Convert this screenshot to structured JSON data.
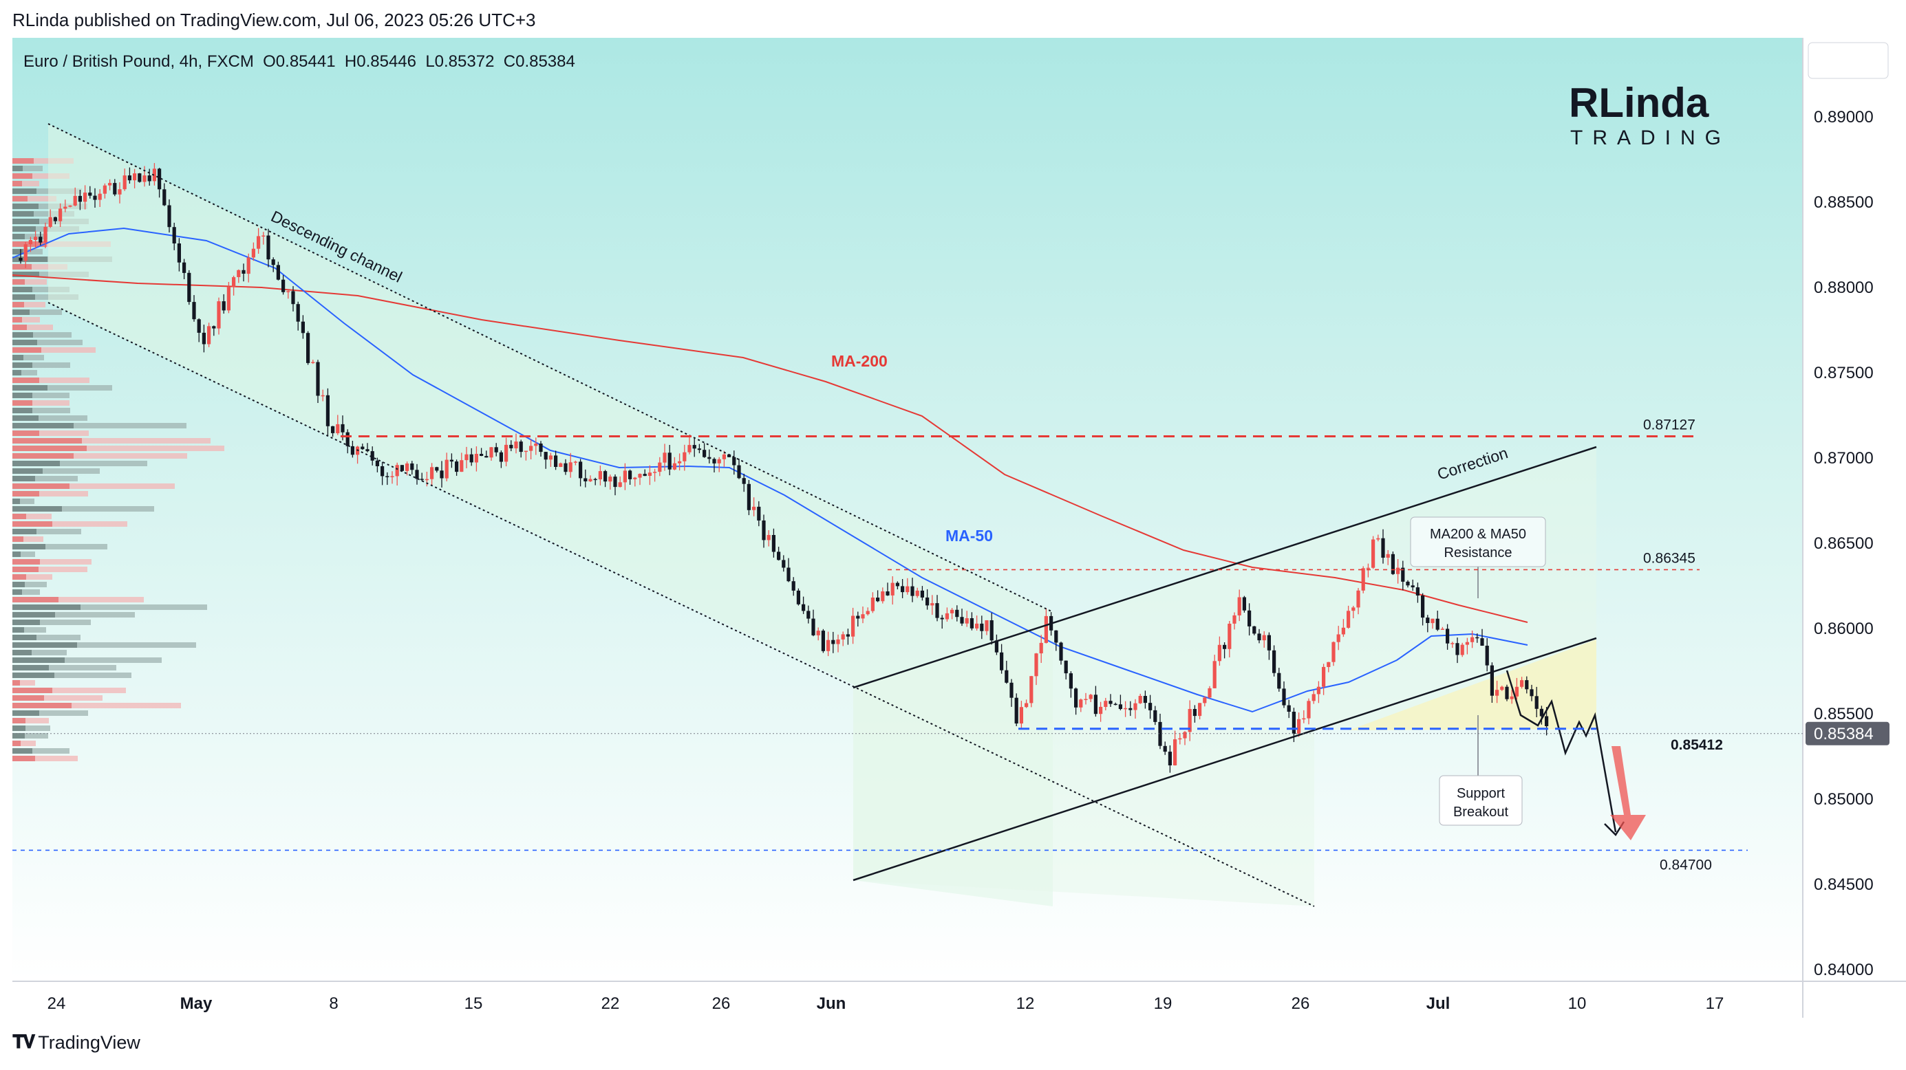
{
  "header": {
    "credit": "RLinda published on TradingView.com, Jul 06, 2023 05:26 UTC+3"
  },
  "chart_data": {
    "type": "candlestick",
    "symbol_line": "Euro / British Pound, 4h, FXCM  O0.85441  H0.85446  L0.85372  C0.85384",
    "ylim": [
      0.8375,
      0.8921
    ],
    "y_ticks": [
      "0.89000",
      "0.88500",
      "0.88000",
      "0.87500",
      "0.87000",
      "0.86500",
      "0.86000",
      "0.85500",
      "0.85000",
      "0.84500",
      "0.84000"
    ],
    "y_tick_values": [
      0.89,
      0.885,
      0.88,
      0.875,
      0.87,
      0.865,
      0.86,
      0.855,
      0.85,
      0.845,
      0.84
    ],
    "x_ticks": [
      "24",
      "May",
      "8",
      "15",
      "22",
      "26",
      "Jun",
      "12",
      "19",
      "26",
      "Jul",
      "10",
      "17"
    ],
    "x_tick_bold": [
      "May",
      "Jun",
      "Jul"
    ],
    "current_price": "0.85384",
    "current_price_value": 0.85384,
    "levels": [
      {
        "label": "0.87127",
        "value": 0.87127,
        "color": "#e53935",
        "style": "dashed-heavy"
      },
      {
        "label": "0.86345",
        "value": 0.86345,
        "color": "#e53935",
        "style": "dashed-light"
      },
      {
        "label": "0.85412",
        "value": 0.85412,
        "color": "#2962ff",
        "style": "dashed-heavy"
      },
      {
        "label": "0.84700",
        "value": 0.847,
        "color": "#2962ff",
        "style": "dashed-light"
      }
    ],
    "annotations": {
      "descending_channel": "Descending channel",
      "correction": "Correction",
      "ma200": "MA-200",
      "ma50": "MA-50",
      "resistance_callout": [
        "MA200 & MA50",
        "Resistance"
      ],
      "support_callout": [
        "Support",
        "Breakout"
      ]
    },
    "colors": {
      "bull": "#ef5350",
      "bear": "#131722",
      "ma200": "#e53935",
      "ma50": "#2962ff",
      "bg_top": "#ade8e4",
      "bg_bottom": "#ffffff"
    }
  },
  "logo": {
    "line1": "RLinda",
    "line2": "TRADING"
  },
  "footer": {
    "brand": "TradingView"
  }
}
